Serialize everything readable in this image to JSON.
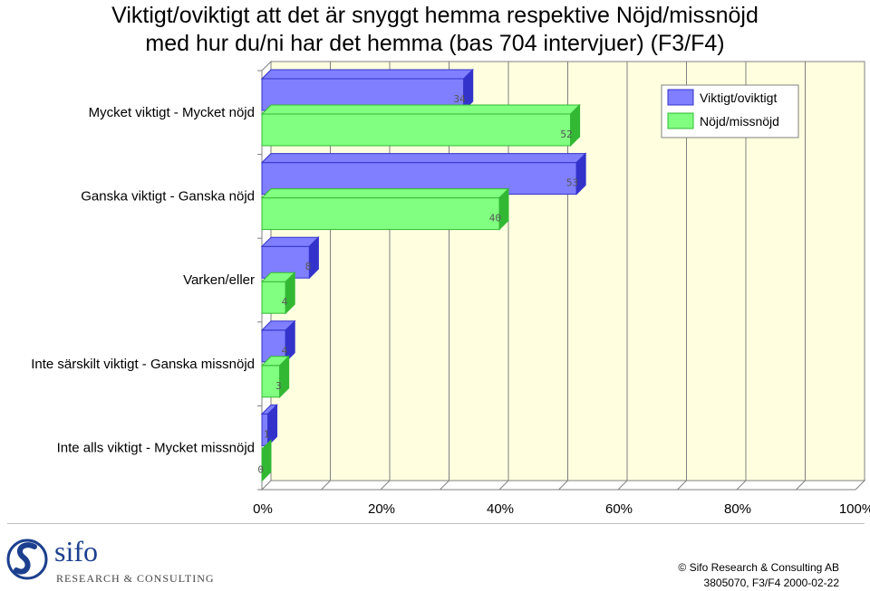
{
  "title": {
    "line1": "Viktigt/oviktigt att det är snyggt hemma respektive Nöjd/missnöjd",
    "line2": "med hur du/ni har det hemma (bas 704 intervjuer) (F3/F4)"
  },
  "chart_data": {
    "type": "bar",
    "orientation": "horizontal",
    "three_d": true,
    "categories": [
      "Mycket viktigt - Mycket nöjd",
      "Ganska viktigt - Ganska nöjd",
      "Varken/eller",
      "Inte särskilt viktigt - Ganska missnöjd",
      "Inte alls viktigt - Mycket missnöjd"
    ],
    "series": [
      {
        "name": "Viktigt/oviktigt",
        "values": [
          34,
          53,
          8,
          4,
          1
        ],
        "color": "#7f7fff",
        "color_dark": "#3333cc"
      },
      {
        "name": "Nöjd/missnöjd",
        "values": [
          52,
          40,
          4,
          3,
          0
        ],
        "color": "#80ff80",
        "color_dark": "#33b833"
      }
    ],
    "x_ticks": [
      "0%",
      "20%",
      "40%",
      "60%",
      "80%",
      "100%"
    ],
    "xlim": [
      0,
      100
    ],
    "grid": true,
    "legend_position": "top-right",
    "plot_background": "#ffffe0"
  },
  "footer": {
    "copyright": "© Sifo Research & Consulting AB",
    "reference": "3805070, F3/F4   2000-02-22"
  },
  "logo": {
    "name": "sifo",
    "tagline": "RESEARCH & CONSULTING"
  }
}
